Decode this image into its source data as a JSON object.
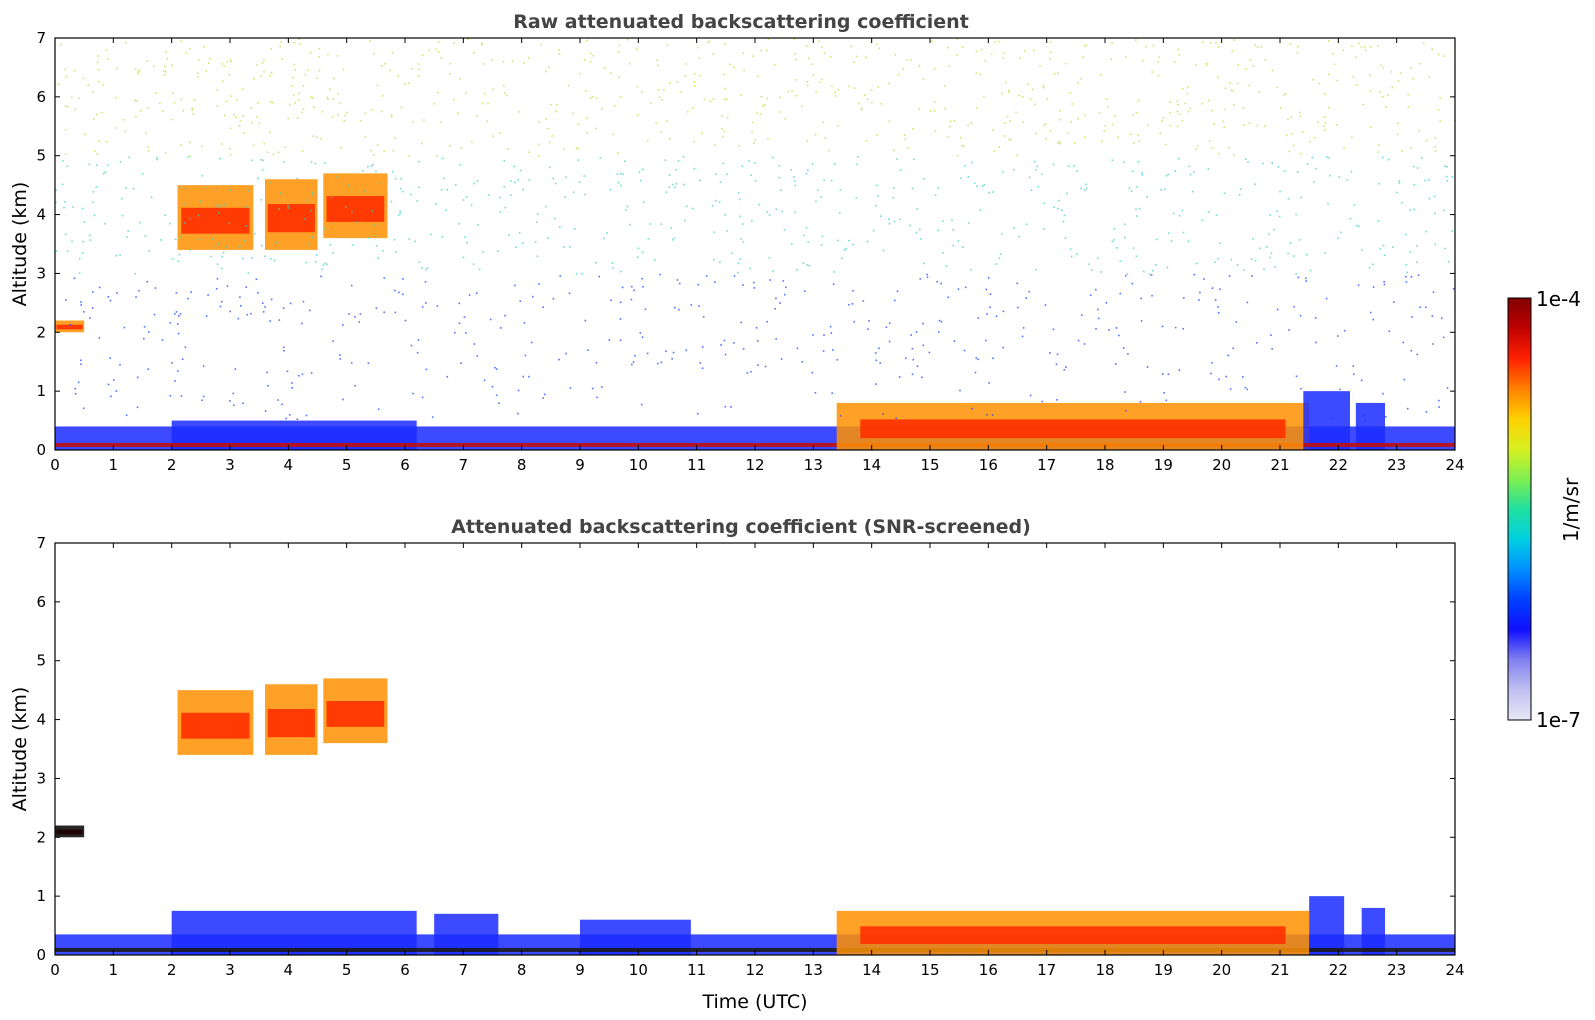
{
  "chart_data": [
    {
      "type": "heatmap",
      "title": "Raw attenuated backscattering coefficient",
      "xlabel": "",
      "ylabel": "Altitude (km)",
      "xlim": [
        0,
        24
      ],
      "ylim": [
        0,
        7
      ],
      "x_ticks": [
        "0",
        "1",
        "2",
        "3",
        "4",
        "5",
        "6",
        "7",
        "8",
        "9",
        "10",
        "11",
        "12",
        "13",
        "14",
        "15",
        "16",
        "17",
        "18",
        "19",
        "20",
        "21",
        "22",
        "23",
        "24"
      ],
      "y_ticks": [
        "0",
        "1",
        "2",
        "3",
        "4",
        "5",
        "6",
        "7"
      ],
      "features": [
        {
          "name": "boundary-layer",
          "t0": 0,
          "t1": 24,
          "z0": 0,
          "z1": 0.4,
          "level": "moderate"
        },
        {
          "name": "boundary-layer-top",
          "t0": 2,
          "t1": 6.2,
          "z0": 0,
          "z1": 0.5,
          "level": "moderate"
        },
        {
          "name": "cloud-base-layer",
          "t0": 13.4,
          "t1": 21.5,
          "z0": 0,
          "z1": 0.8,
          "level": "strong"
        },
        {
          "name": "aerosol-plume",
          "t0": 21.4,
          "t1": 22.2,
          "z0": 0,
          "z1": 1.0,
          "level": "moderate"
        },
        {
          "name": "aerosol-plume",
          "t0": 22.3,
          "t1": 22.8,
          "z0": 0,
          "z1": 0.8,
          "level": "moderate"
        },
        {
          "name": "mid-level-cloud",
          "t0": 2.1,
          "t1": 3.4,
          "z0": 3.4,
          "z1": 4.5,
          "level": "strong"
        },
        {
          "name": "mid-level-cloud",
          "t0": 3.6,
          "t1": 4.5,
          "z0": 3.4,
          "z1": 4.6,
          "level": "strong"
        },
        {
          "name": "mid-level-cloud",
          "t0": 4.6,
          "t1": 5.7,
          "z0": 3.6,
          "z1": 4.7,
          "level": "strong"
        },
        {
          "name": "residual-layer",
          "t0": 0,
          "t1": 0.5,
          "z0": 2.0,
          "z1": 2.2,
          "level": "strong"
        },
        {
          "name": "background-noise",
          "t0": 0,
          "t1": 24,
          "z0": 0.5,
          "z1": 7,
          "level": "noise"
        }
      ]
    },
    {
      "type": "heatmap",
      "title": "Attenuated backscattering coefficient (SNR-screened)",
      "xlabel": "Time (UTC)",
      "ylabel": "Altitude (km)",
      "xlim": [
        0,
        24
      ],
      "ylim": [
        0,
        7
      ],
      "x_ticks": [
        "0",
        "1",
        "2",
        "3",
        "4",
        "5",
        "6",
        "7",
        "8",
        "9",
        "10",
        "11",
        "12",
        "13",
        "14",
        "15",
        "16",
        "17",
        "18",
        "19",
        "20",
        "21",
        "22",
        "23",
        "24"
      ],
      "y_ticks": [
        "0",
        "1",
        "2",
        "3",
        "4",
        "5",
        "6",
        "7"
      ],
      "features": [
        {
          "name": "boundary-layer",
          "t0": 0,
          "t1": 24,
          "z0": 0,
          "z1": 0.35,
          "level": "moderate"
        },
        {
          "name": "boundary-layer-top",
          "t0": 2,
          "t1": 6.2,
          "z0": 0,
          "z1": 0.75,
          "level": "moderate"
        },
        {
          "name": "boundary-layer-top",
          "t0": 6.5,
          "t1": 7.6,
          "z0": 0,
          "z1": 0.7,
          "level": "moderate"
        },
        {
          "name": "boundary-layer-top",
          "t0": 9,
          "t1": 10.9,
          "z0": 0,
          "z1": 0.6,
          "level": "moderate"
        },
        {
          "name": "cloud-base-layer",
          "t0": 13.4,
          "t1": 21.5,
          "z0": 0,
          "z1": 0.75,
          "level": "strong"
        },
        {
          "name": "aerosol-plume",
          "t0": 21.5,
          "t1": 22.1,
          "z0": 0,
          "z1": 1.0,
          "level": "moderate"
        },
        {
          "name": "aerosol-plume",
          "t0": 22.4,
          "t1": 22.8,
          "z0": 0,
          "z1": 0.8,
          "level": "moderate"
        },
        {
          "name": "mid-level-cloud",
          "t0": 2.1,
          "t1": 3.4,
          "z0": 3.4,
          "z1": 4.5,
          "level": "strong"
        },
        {
          "name": "mid-level-cloud",
          "t0": 3.6,
          "t1": 4.5,
          "z0": 3.4,
          "z1": 4.6,
          "level": "strong"
        },
        {
          "name": "mid-level-cloud",
          "t0": 4.6,
          "t1": 5.7,
          "z0": 3.6,
          "z1": 4.7,
          "level": "strong"
        },
        {
          "name": "residual-layer",
          "t0": 0,
          "t1": 0.5,
          "z0": 2.0,
          "z1": 2.2,
          "level": "saturated"
        }
      ]
    }
  ],
  "colorbar": {
    "label": "1/m/sr",
    "max_label": "1e-4",
    "min_label": "1e-7",
    "colors": [
      "#e8e8f8",
      "#c0c0f0",
      "#8080f0",
      "#1010ff",
      "#0040ff",
      "#0090ff",
      "#00d0e0",
      "#20e0a0",
      "#80ef50",
      "#d8f020",
      "#ffd000",
      "#ff8000",
      "#ff2000",
      "#c00000",
      "#800000"
    ]
  }
}
